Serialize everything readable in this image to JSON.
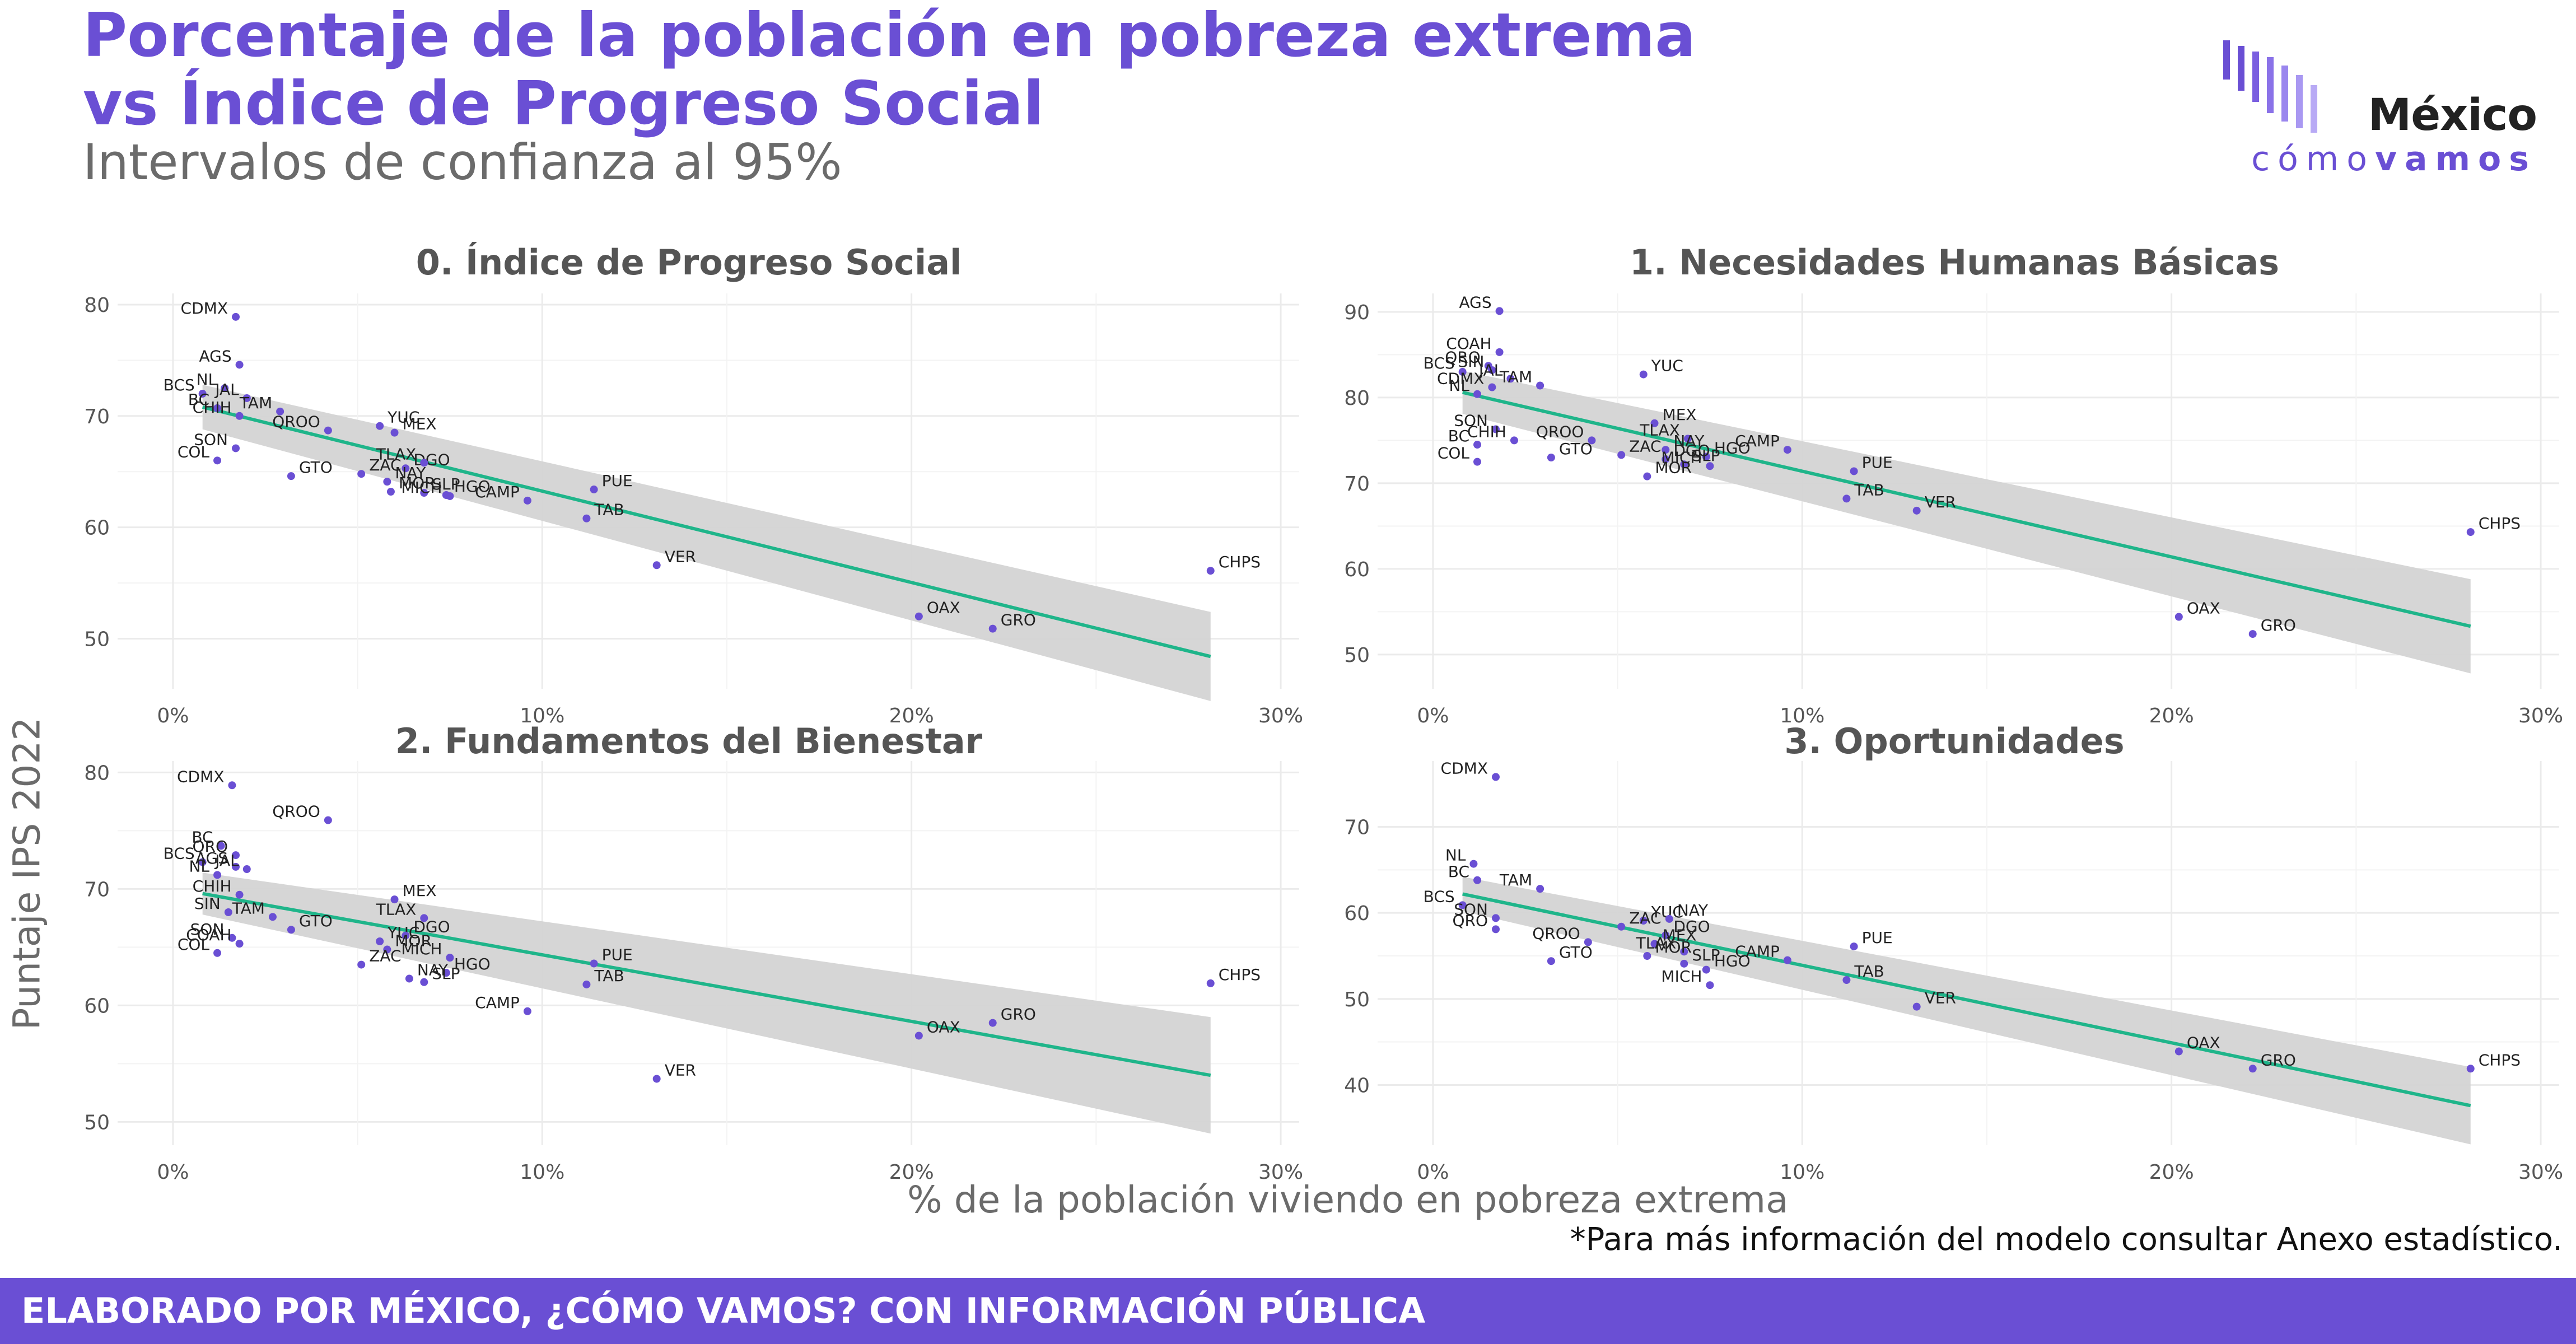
{
  "header": {
    "title_line1": "Porcentaje de la población en pobreza extrema",
    "title_line2": "vs Índice de Progreso Social",
    "subtitle": "Intervalos de confianza al 95%"
  },
  "logo": {
    "word1": "México",
    "word2_light": "cómo",
    "word2_bold": "vamos",
    "bar_color": "#6a4fd4"
  },
  "axes": {
    "ylabel": "Puntaje IPS 2022",
    "xlabel": "% de la población viviendo en pobreza extrema"
  },
  "note": "*Para más información del modelo consultar Anexo estadístico.",
  "footer": {
    "text": "ELABORADO POR MÉXICO, ¿CÓMO VAMOS? CON INFORMACIÓN PÚBLICA"
  },
  "colors": {
    "accent": "#6a4fd4",
    "points": "#6a4fd4",
    "fit_line": "#1fb58a",
    "ci_band": "#d4d4d4",
    "grid": "#ebebeb"
  },
  "chart_data": [
    {
      "type": "scatter",
      "title": "0. Índice de Progreso Social",
      "xlim": [
        -0.015,
        0.305
      ],
      "ylim": [
        45.5,
        80.5
      ],
      "xticks": [
        0,
        0.1,
        0.2,
        0.3
      ],
      "xtick_labels": [
        "0%",
        "10%",
        "20%",
        "30%"
      ],
      "yticks": [
        50,
        60,
        70,
        80
      ],
      "ytick_labels": [
        "50",
        "60",
        "70",
        "80"
      ],
      "fit": {
        "x0": 0.008,
        "y0": 70.8,
        "x1": 0.281,
        "y1": 48.4,
        "ci0": 2.0,
        "ci1": 4.0
      },
      "points": [
        {
          "label": "CDMX",
          "x": 0.017,
          "y": 78.9
        },
        {
          "label": "AGS",
          "x": 0.018,
          "y": 74.6
        },
        {
          "label": "NL",
          "x": 0.014,
          "y": 72.5
        },
        {
          "label": "BCS",
          "x": 0.008,
          "y": 72.0
        },
        {
          "label": "JAL",
          "x": 0.02,
          "y": 71.6
        },
        {
          "label": "BC",
          "x": 0.012,
          "y": 70.7
        },
        {
          "label": "CHIH",
          "x": 0.018,
          "y": 70.0
        },
        {
          "label": "TAM",
          "x": 0.029,
          "y": 70.4
        },
        {
          "label": "YUC",
          "x": 0.056,
          "y": 69.1
        },
        {
          "label": "MEX",
          "x": 0.06,
          "y": 68.5
        },
        {
          "label": "QROO",
          "x": 0.042,
          "y": 68.7
        },
        {
          "label": "SON",
          "x": 0.017,
          "y": 67.1
        },
        {
          "label": "COL",
          "x": 0.012,
          "y": 66.0
        },
        {
          "label": "DGO",
          "x": 0.063,
          "y": 65.3
        },
        {
          "label": "TLAX",
          "x": 0.068,
          "y": 65.8
        },
        {
          "label": "ZAC",
          "x": 0.051,
          "y": 64.8
        },
        {
          "label": "GTO",
          "x": 0.032,
          "y": 64.6
        },
        {
          "label": "NAY",
          "x": 0.058,
          "y": 64.1
        },
        {
          "label": "HGO",
          "x": 0.074,
          "y": 62.9
        },
        {
          "label": "MOR",
          "x": 0.059,
          "y": 63.2
        },
        {
          "label": "SLP",
          "x": 0.068,
          "y": 63.1
        },
        {
          "label": "MICH",
          "x": 0.075,
          "y": 62.8
        },
        {
          "label": "CAMP",
          "x": 0.096,
          "y": 62.4
        },
        {
          "label": "PUE",
          "x": 0.114,
          "y": 63.4
        },
        {
          "label": "TAB",
          "x": 0.112,
          "y": 60.8
        },
        {
          "label": "VER",
          "x": 0.131,
          "y": 56.6
        },
        {
          "label": "OAX",
          "x": 0.202,
          "y": 52.0
        },
        {
          "label": "GRO",
          "x": 0.222,
          "y": 50.9
        },
        {
          "label": "CHPS",
          "x": 0.281,
          "y": 56.1
        }
      ]
    },
    {
      "type": "scatter",
      "title": "1. Necesidades Humanas Básicas",
      "xlim": [
        -0.015,
        0.305
      ],
      "ylim": [
        46,
        91.5
      ],
      "xticks": [
        0,
        0.1,
        0.2,
        0.3
      ],
      "xtick_labels": [
        "0%",
        "10%",
        "20%",
        "30%"
      ],
      "yticks": [
        50,
        60,
        70,
        80,
        90
      ],
      "ytick_labels": [
        "50",
        "60",
        "70",
        "80",
        "90"
      ],
      "fit": {
        "x0": 0.008,
        "y0": 80.6,
        "x1": 0.281,
        "y1": 53.3,
        "ci0": 2.5,
        "ci1": 5.5
      },
      "points": [
        {
          "label": "AGS",
          "x": 0.018,
          "y": 90.1
        },
        {
          "label": "COAH",
          "x": 0.018,
          "y": 85.3
        },
        {
          "label": "QRO",
          "x": 0.015,
          "y": 83.7
        },
        {
          "label": "SIN",
          "x": 0.016,
          "y": 83.2
        },
        {
          "label": "BCS",
          "x": 0.008,
          "y": 83.0
        },
        {
          "label": "JAL",
          "x": 0.021,
          "y": 82.2
        },
        {
          "label": "YUC",
          "x": 0.057,
          "y": 82.7
        },
        {
          "label": "CDMX",
          "x": 0.016,
          "y": 81.2
        },
        {
          "label": "NL",
          "x": 0.012,
          "y": 80.4
        },
        {
          "label": "TAM",
          "x": 0.029,
          "y": 81.4
        },
        {
          "label": "MEX",
          "x": 0.06,
          "y": 77.0
        },
        {
          "label": "QROO",
          "x": 0.043,
          "y": 75.0
        },
        {
          "label": "SON",
          "x": 0.017,
          "y": 76.3
        },
        {
          "label": "TLAX",
          "x": 0.069,
          "y": 75.2
        },
        {
          "label": "CHIH",
          "x": 0.022,
          "y": 75.0
        },
        {
          "label": "BC",
          "x": 0.012,
          "y": 74.5
        },
        {
          "label": "NAY",
          "x": 0.063,
          "y": 73.9
        },
        {
          "label": "HGO",
          "x": 0.074,
          "y": 73.1
        },
        {
          "label": "CAMP",
          "x": 0.096,
          "y": 73.9
        },
        {
          "label": "ZAC",
          "x": 0.051,
          "y": 73.3
        },
        {
          "label": "GTO",
          "x": 0.032,
          "y": 73.0
        },
        {
          "label": "COL",
          "x": 0.012,
          "y": 72.5
        },
        {
          "label": "DGO",
          "x": 0.063,
          "y": 72.8
        },
        {
          "label": "SLP",
          "x": 0.068,
          "y": 72.2
        },
        {
          "label": "MICH",
          "x": 0.075,
          "y": 72.0
        },
        {
          "label": "PUE",
          "x": 0.114,
          "y": 71.4
        },
        {
          "label": "MOR",
          "x": 0.058,
          "y": 70.8
        },
        {
          "label": "TAB",
          "x": 0.112,
          "y": 68.2
        },
        {
          "label": "VER",
          "x": 0.131,
          "y": 66.8
        },
        {
          "label": "CHPS",
          "x": 0.281,
          "y": 64.3
        },
        {
          "label": "OAX",
          "x": 0.202,
          "y": 54.4
        },
        {
          "label": "GRO",
          "x": 0.222,
          "y": 52.4
        }
      ]
    },
    {
      "type": "scatter",
      "title": "2. Fundamentos del Bienestar",
      "xlim": [
        -0.015,
        0.305
      ],
      "ylim": [
        48,
        80.5
      ],
      "xticks": [
        0,
        0.1,
        0.2,
        0.3
      ],
      "xtick_labels": [
        "0%",
        "10%",
        "20%",
        "30%"
      ],
      "yticks": [
        50,
        60,
        70,
        80
      ],
      "ytick_labels": [
        "50",
        "60",
        "70",
        "80"
      ],
      "fit": {
        "x0": 0.008,
        "y0": 69.6,
        "x1": 0.281,
        "y1": 54.0,
        "ci0": 1.8,
        "ci1": 5.0
      },
      "points": [
        {
          "label": "CDMX",
          "x": 0.016,
          "y": 78.9
        },
        {
          "label": "QROO",
          "x": 0.042,
          "y": 75.9
        },
        {
          "label": "BC",
          "x": 0.013,
          "y": 73.7
        },
        {
          "label": "QRO",
          "x": 0.017,
          "y": 72.9
        },
        {
          "label": "BCS",
          "x": 0.008,
          "y": 72.3
        },
        {
          "label": "AGS",
          "x": 0.017,
          "y": 71.9
        },
        {
          "label": "JAL",
          "x": 0.02,
          "y": 71.7
        },
        {
          "label": "NL",
          "x": 0.012,
          "y": 71.2
        },
        {
          "label": "MEX",
          "x": 0.06,
          "y": 69.1
        },
        {
          "label": "CHIH",
          "x": 0.018,
          "y": 69.5
        },
        {
          "label": "TLAX",
          "x": 0.068,
          "y": 67.5
        },
        {
          "label": "SIN",
          "x": 0.015,
          "y": 68.0
        },
        {
          "label": "TAM",
          "x": 0.027,
          "y": 67.6
        },
        {
          "label": "GTO",
          "x": 0.032,
          "y": 66.5
        },
        {
          "label": "SON",
          "x": 0.016,
          "y": 65.8
        },
        {
          "label": "YUC",
          "x": 0.056,
          "y": 65.5
        },
        {
          "label": "DGO",
          "x": 0.063,
          "y": 66.0
        },
        {
          "label": "COAH",
          "x": 0.018,
          "y": 65.3
        },
        {
          "label": "COL",
          "x": 0.012,
          "y": 64.5
        },
        {
          "label": "MICH",
          "x": 0.075,
          "y": 64.1
        },
        {
          "label": "MOR",
          "x": 0.058,
          "y": 64.8
        },
        {
          "label": "ZAC",
          "x": 0.051,
          "y": 63.5
        },
        {
          "label": "PUE",
          "x": 0.114,
          "y": 63.6
        },
        {
          "label": "HGO",
          "x": 0.074,
          "y": 62.8
        },
        {
          "label": "NAY",
          "x": 0.064,
          "y": 62.3
        },
        {
          "label": "SLP",
          "x": 0.068,
          "y": 62.0
        },
        {
          "label": "TAB",
          "x": 0.112,
          "y": 61.8
        },
        {
          "label": "CAMP",
          "x": 0.096,
          "y": 59.5
        },
        {
          "label": "CHPS",
          "x": 0.281,
          "y": 61.9
        },
        {
          "label": "GRO",
          "x": 0.222,
          "y": 58.5
        },
        {
          "label": "OAX",
          "x": 0.202,
          "y": 57.4
        },
        {
          "label": "VER",
          "x": 0.131,
          "y": 53.7
        }
      ]
    },
    {
      "type": "scatter",
      "title": "3. Oportunidades",
      "xlim": [
        -0.015,
        0.305
      ],
      "ylim": [
        33,
        77
      ],
      "xticks": [
        0,
        0.1,
        0.2,
        0.3
      ],
      "xtick_labels": [
        "0%",
        "10%",
        "20%",
        "30%"
      ],
      "yticks": [
        40,
        50,
        60,
        70
      ],
      "ytick_labels": [
        "40",
        "50",
        "60",
        "70"
      ],
      "fit": {
        "x0": 0.008,
        "y0": 62.2,
        "x1": 0.281,
        "y1": 37.6,
        "ci0": 2.0,
        "ci1": 4.5
      },
      "points": [
        {
          "label": "CDMX",
          "x": 0.017,
          "y": 75.8
        },
        {
          "label": "NL",
          "x": 0.011,
          "y": 65.7
        },
        {
          "label": "BC",
          "x": 0.012,
          "y": 63.8
        },
        {
          "label": "TAM",
          "x": 0.029,
          "y": 62.8
        },
        {
          "label": "BCS",
          "x": 0.008,
          "y": 60.9
        },
        {
          "label": "YUC",
          "x": 0.057,
          "y": 59.1
        },
        {
          "label": "NAY",
          "x": 0.064,
          "y": 59.3
        },
        {
          "label": "SON",
          "x": 0.017,
          "y": 59.4
        },
        {
          "label": "ZAC",
          "x": 0.051,
          "y": 58.4
        },
        {
          "label": "DGO",
          "x": 0.063,
          "y": 57.4
        },
        {
          "label": "QRO",
          "x": 0.017,
          "y": 58.1
        },
        {
          "label": "QROO",
          "x": 0.042,
          "y": 56.6
        },
        {
          "label": "MEX",
          "x": 0.06,
          "y": 56.4
        },
        {
          "label": "PUE",
          "x": 0.114,
          "y": 56.1
        },
        {
          "label": "TLAX",
          "x": 0.068,
          "y": 55.5
        },
        {
          "label": "GTO",
          "x": 0.032,
          "y": 54.4
        },
        {
          "label": "MOR",
          "x": 0.058,
          "y": 55.0
        },
        {
          "label": "SLP",
          "x": 0.068,
          "y": 54.1
        },
        {
          "label": "HGO",
          "x": 0.074,
          "y": 53.4
        },
        {
          "label": "CAMP",
          "x": 0.096,
          "y": 54.5
        },
        {
          "label": "TAB",
          "x": 0.112,
          "y": 52.2
        },
        {
          "label": "MICH",
          "x": 0.075,
          "y": 51.6
        },
        {
          "label": "VER",
          "x": 0.131,
          "y": 49.1
        },
        {
          "label": "OAX",
          "x": 0.202,
          "y": 43.9
        },
        {
          "label": "GRO",
          "x": 0.222,
          "y": 41.9
        },
        {
          "label": "CHPS",
          "x": 0.281,
          "y": 41.9
        }
      ]
    }
  ]
}
